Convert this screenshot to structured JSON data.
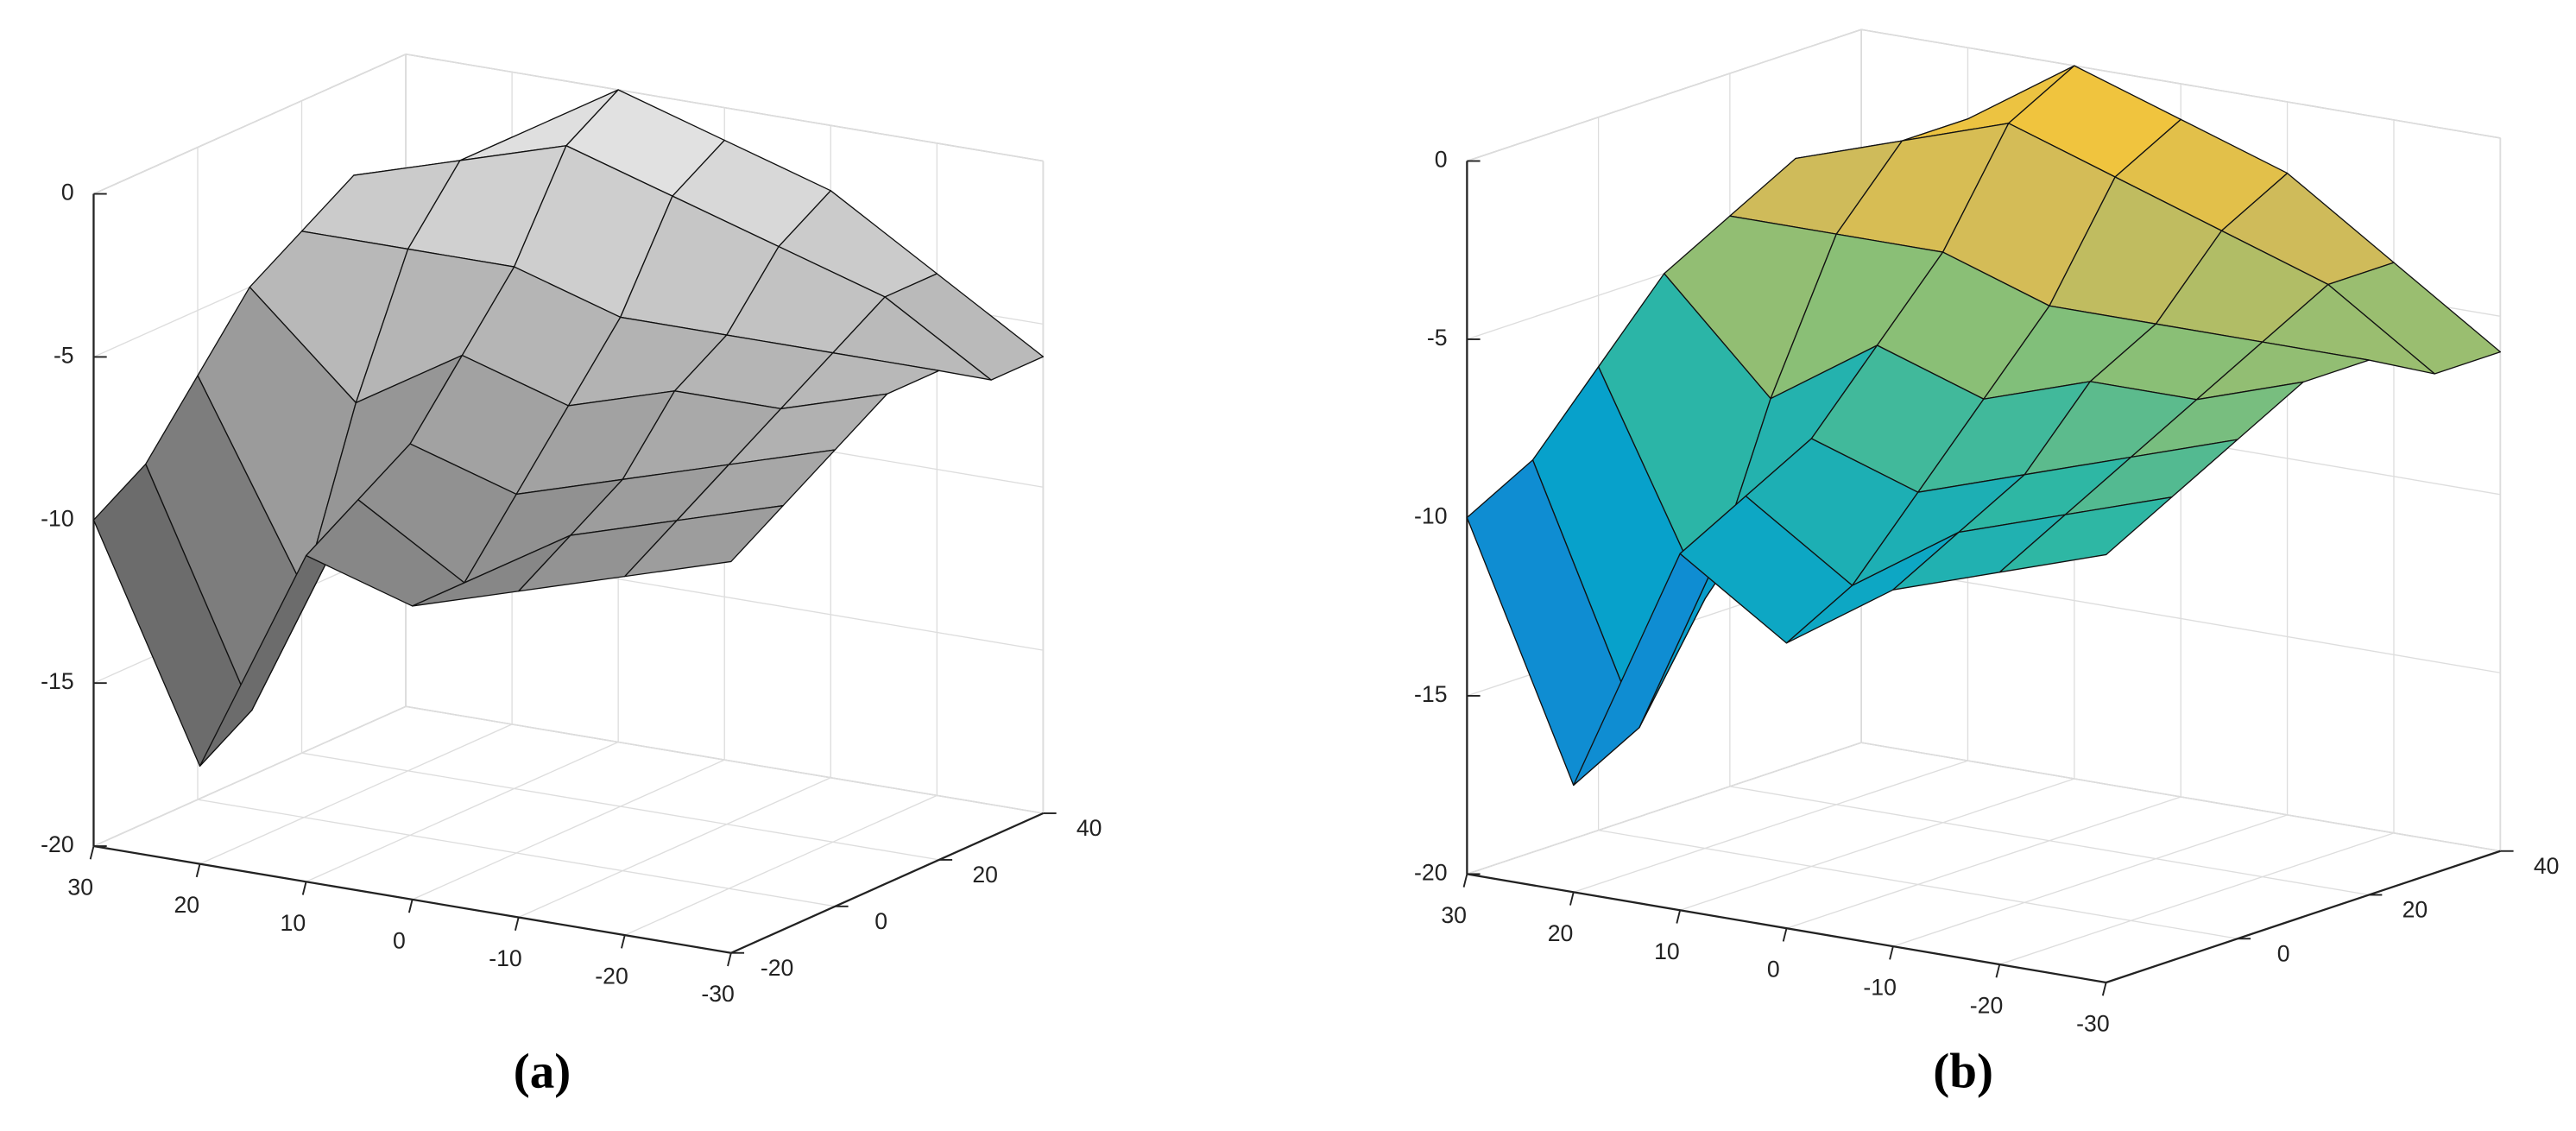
{
  "chart_data": [
    {
      "type": "surface",
      "caption": "(a)",
      "colormap": "gray",
      "xlim": [
        30,
        -30
      ],
      "ylim": [
        -20,
        40
      ],
      "zlim": [
        -20,
        0
      ],
      "xticks": [
        30,
        20,
        10,
        0,
        -10,
        -20,
        -30
      ],
      "yticks": [
        -20,
        0,
        20,
        40
      ],
      "zticks": [
        0,
        -5,
        -10,
        -15,
        -20
      ],
      "x": [
        30,
        20,
        10,
        0,
        -10,
        -20,
        -30
      ],
      "y": [
        -20,
        -10,
        0,
        10,
        20,
        30,
        40
      ],
      "z": [
        [
          -10,
          -17,
          -10,
          -11,
          -10,
          -9,
          -8
        ],
        [
          -9,
          -16,
          -9,
          -11,
          -9,
          -8,
          -7
        ],
        [
          -7,
          -13,
          -8,
          -9,
          -8,
          -7,
          -6
        ],
        [
          -5,
          -8,
          -6,
          -7,
          -6,
          -6,
          -5
        ],
        [
          -4,
          -4,
          -4,
          -5,
          -5,
          -5,
          -5
        ],
        [
          -3,
          -2,
          -1,
          -2,
          -3,
          -4,
          -6
        ],
        [
          -4,
          -2,
          0,
          -1,
          -2,
          -4,
          -6
        ]
      ]
    },
    {
      "type": "surface",
      "caption": "(b)",
      "colormap": "parula",
      "xlim": [
        30,
        -30
      ],
      "ylim": [
        -20,
        40
      ],
      "zlim": [
        -20,
        0
      ],
      "xticks": [
        30,
        20,
        10,
        0,
        -10,
        -20,
        -30
      ],
      "yticks": [
        0,
        20,
        40
      ],
      "zticks": [
        0,
        -5,
        -10,
        -15,
        -20
      ],
      "x": [
        30,
        20,
        10,
        0,
        -10,
        -20,
        -30
      ],
      "y": [
        -20,
        -10,
        0,
        10,
        20,
        30,
        40
      ],
      "z": [
        [
          -10,
          -17,
          -10,
          -12,
          -10,
          -9,
          -8
        ],
        [
          -9,
          -16,
          -9,
          -11,
          -9,
          -8,
          -7
        ],
        [
          -7,
          -13,
          -8,
          -9,
          -8,
          -7,
          -6
        ],
        [
          -5,
          -8,
          -6,
          -7,
          -6,
          -6,
          -5
        ],
        [
          -4,
          -4,
          -4,
          -5,
          -5,
          -5,
          -5
        ],
        [
          -3,
          -2,
          -1,
          -2,
          -3,
          -4,
          -6
        ],
        [
          -4,
          -2,
          0,
          -1,
          -2,
          -4,
          -6
        ]
      ]
    }
  ]
}
